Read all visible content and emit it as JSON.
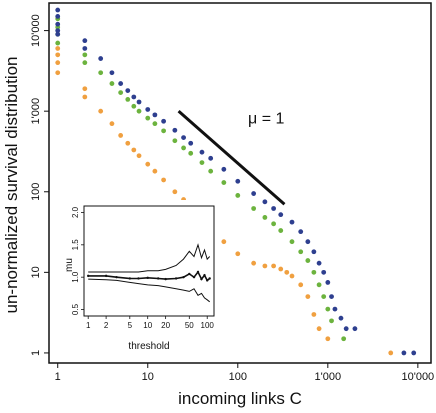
{
  "chart_data": [
    {
      "type": "scatter",
      "xlabel": "incoming links C",
      "ylabel": "un-normalized survival distribution",
      "xscale": "log",
      "yscale": "log",
      "xlim": [
        0.8,
        14000
      ],
      "ylim": [
        0.75,
        22000
      ],
      "x_ticks": [
        1,
        10,
        100,
        1000,
        10000
      ],
      "x_tick_labels": [
        "1",
        "10",
        "100",
        "1'000",
        "10'000"
      ],
      "y_ticks": [
        1,
        10,
        100,
        1000,
        10000
      ],
      "y_tick_labels": [
        "1",
        "10",
        "100",
        "1'000",
        "10'000"
      ],
      "grid": false,
      "colors": {
        "blue": "#2e3f8f",
        "green": "#6cb33e",
        "orange": "#f0a040",
        "black": "#111111"
      },
      "annotations": [
        {
          "text": "μ = 1",
          "x": 130,
          "y": 700
        }
      ],
      "reference_line": {
        "slope": -1,
        "x": [
          22,
          330
        ],
        "y": [
          1000,
          70
        ]
      },
      "series": [
        {
          "color": "blue",
          "x": [
            1,
            1,
            1,
            1,
            1,
            2,
            2,
            3,
            4,
            5,
            6,
            7,
            8,
            10,
            12,
            15,
            20,
            25,
            30,
            40,
            50,
            70,
            100,
            150,
            200,
            250,
            300,
            400,
            500,
            600,
            700,
            800,
            900,
            1000,
            1100,
            1200,
            1400,
            1600,
            2000,
            7000,
            9000
          ],
          "y": [
            18000,
            15000,
            12000,
            10000,
            9000,
            7500,
            6000,
            4500,
            3000,
            2200,
            1800,
            1500,
            1300,
            1050,
            900,
            750,
            580,
            470,
            400,
            310,
            260,
            190,
            135,
            95,
            75,
            62,
            52,
            42,
            32,
            24,
            18,
            13,
            10,
            7.5,
            5,
            3.5,
            2.7,
            2,
            2,
            1,
            1
          ]
        },
        {
          "color": "green",
          "x": [
            1,
            1,
            1,
            1,
            2,
            2,
            3,
            4,
            5,
            6,
            7,
            8,
            10,
            12,
            15,
            20,
            25,
            30,
            40,
            50,
            70,
            100,
            150,
            200,
            250,
            300,
            400,
            500,
            600,
            700,
            800,
            900,
            1000,
            1100,
            1500
          ],
          "y": [
            14000,
            11000,
            9000,
            7000,
            5000,
            4000,
            3000,
            2200,
            1700,
            1400,
            1150,
            1000,
            820,
            700,
            570,
            430,
            350,
            300,
            230,
            180,
            130,
            90,
            62,
            48,
            40,
            33,
            24,
            18,
            14,
            10,
            7,
            5,
            3.5,
            2.5,
            1.5
          ]
        },
        {
          "color": "orange",
          "x": [
            1,
            1,
            1,
            1,
            2,
            2,
            3,
            4,
            5,
            6,
            7,
            8,
            10,
            12,
            15,
            20,
            25,
            30,
            40,
            50,
            70,
            100,
            150,
            200,
            250,
            300,
            350,
            400,
            500,
            600,
            700,
            800,
            1000,
            5000
          ],
          "y": [
            6000,
            5000,
            4000,
            3000,
            1900,
            1500,
            1000,
            700,
            500,
            400,
            330,
            280,
            220,
            180,
            140,
            100,
            80,
            60,
            45,
            33,
            24,
            17,
            13,
            12,
            12,
            11,
            10,
            9,
            7,
            5,
            3,
            2,
            1.5,
            1
          ]
        }
      ]
    },
    {
      "type": "line",
      "xlabel": "threshold",
      "ylabel": "mu",
      "xscale": "log",
      "xlim": [
        0.85,
        130
      ],
      "ylim": [
        0.4,
        2.1
      ],
      "x_ticks": [
        1,
        2,
        5,
        10,
        20,
        50,
        100
      ],
      "x_tick_labels": [
        "1",
        "2",
        "5",
        "10",
        "20",
        "50",
        "100"
      ],
      "y_ticks": [
        0.5,
        1.0,
        1.5,
        2.0
      ],
      "y_tick_labels": [
        "0.5",
        "1.0",
        "1.5",
        "2.0"
      ],
      "series": [
        {
          "role": "estimate",
          "x": [
            1,
            2,
            3,
            5,
            7,
            10,
            15,
            20,
            30,
            40,
            50,
            60,
            70,
            80,
            90,
            100,
            110
          ],
          "y": [
            1.02,
            1.02,
            1.0,
            0.98,
            0.98,
            0.99,
            0.98,
            0.97,
            0.98,
            1.0,
            1.05,
            1.0,
            1.08,
            0.97,
            1.03,
            0.95,
            0.98
          ]
        },
        {
          "role": "upper",
          "x": [
            1,
            2,
            3,
            5,
            7,
            10,
            15,
            20,
            30,
            40,
            50,
            60,
            70,
            80,
            90,
            100,
            110
          ],
          "y": [
            1.08,
            1.08,
            1.08,
            1.08,
            1.08,
            1.1,
            1.1,
            1.12,
            1.18,
            1.28,
            1.4,
            1.32,
            1.5,
            1.3,
            1.42,
            1.28,
            1.32
          ]
        },
        {
          "role": "lower",
          "x": [
            1,
            2,
            3,
            5,
            7,
            10,
            15,
            20,
            30,
            40,
            50,
            60,
            70,
            80,
            90,
            100,
            110
          ],
          "y": [
            0.97,
            0.96,
            0.95,
            0.92,
            0.9,
            0.88,
            0.87,
            0.85,
            0.82,
            0.8,
            0.78,
            0.82,
            0.72,
            0.75,
            0.68,
            0.65,
            0.62
          ]
        }
      ]
    }
  ]
}
